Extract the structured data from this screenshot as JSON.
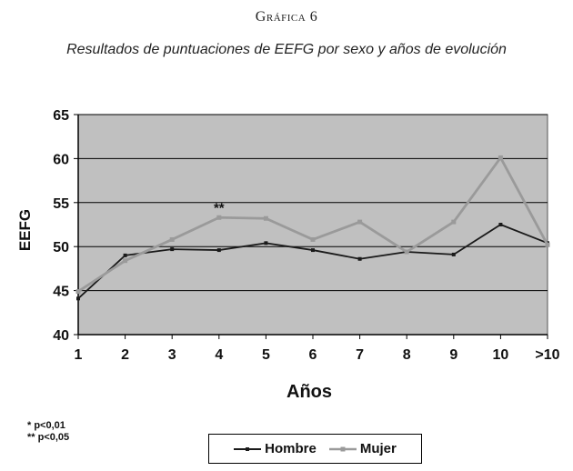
{
  "heading": "Gráfica 6",
  "subheading": "Resultados de puntuaciones de EEFG por sexo y años de evolución",
  "chart_data": {
    "type": "line",
    "title": "Resultados de puntuaciones de EEFG por sexo y años de evolución",
    "xlabel": "Años",
    "ylabel": "EEFG",
    "categories": [
      "1",
      "2",
      "3",
      "4",
      "5",
      "6",
      "7",
      "8",
      "9",
      "10",
      ">10"
    ],
    "ylim": [
      40,
      65
    ],
    "yticks": [
      40,
      45,
      50,
      55,
      60,
      65
    ],
    "grid": true,
    "series": [
      {
        "name": "Hombre",
        "color": "#1a1a1a",
        "values": [
          44.1,
          49.0,
          49.7,
          49.6,
          50.4,
          49.6,
          48.6,
          49.4,
          49.1,
          52.5,
          50.4
        ]
      },
      {
        "name": "Mujer",
        "color": "#9a9a9a",
        "values": [
          44.9,
          48.4,
          50.8,
          53.3,
          53.2,
          50.8,
          52.8,
          49.4,
          52.8,
          60.1,
          50.2
        ]
      }
    ],
    "annotations": [
      {
        "text": "**",
        "category": "4",
        "y": 54.5
      }
    ],
    "legend": "bottom"
  },
  "footnotes": [
    "* p<0,01",
    "** p<0,05"
  ]
}
